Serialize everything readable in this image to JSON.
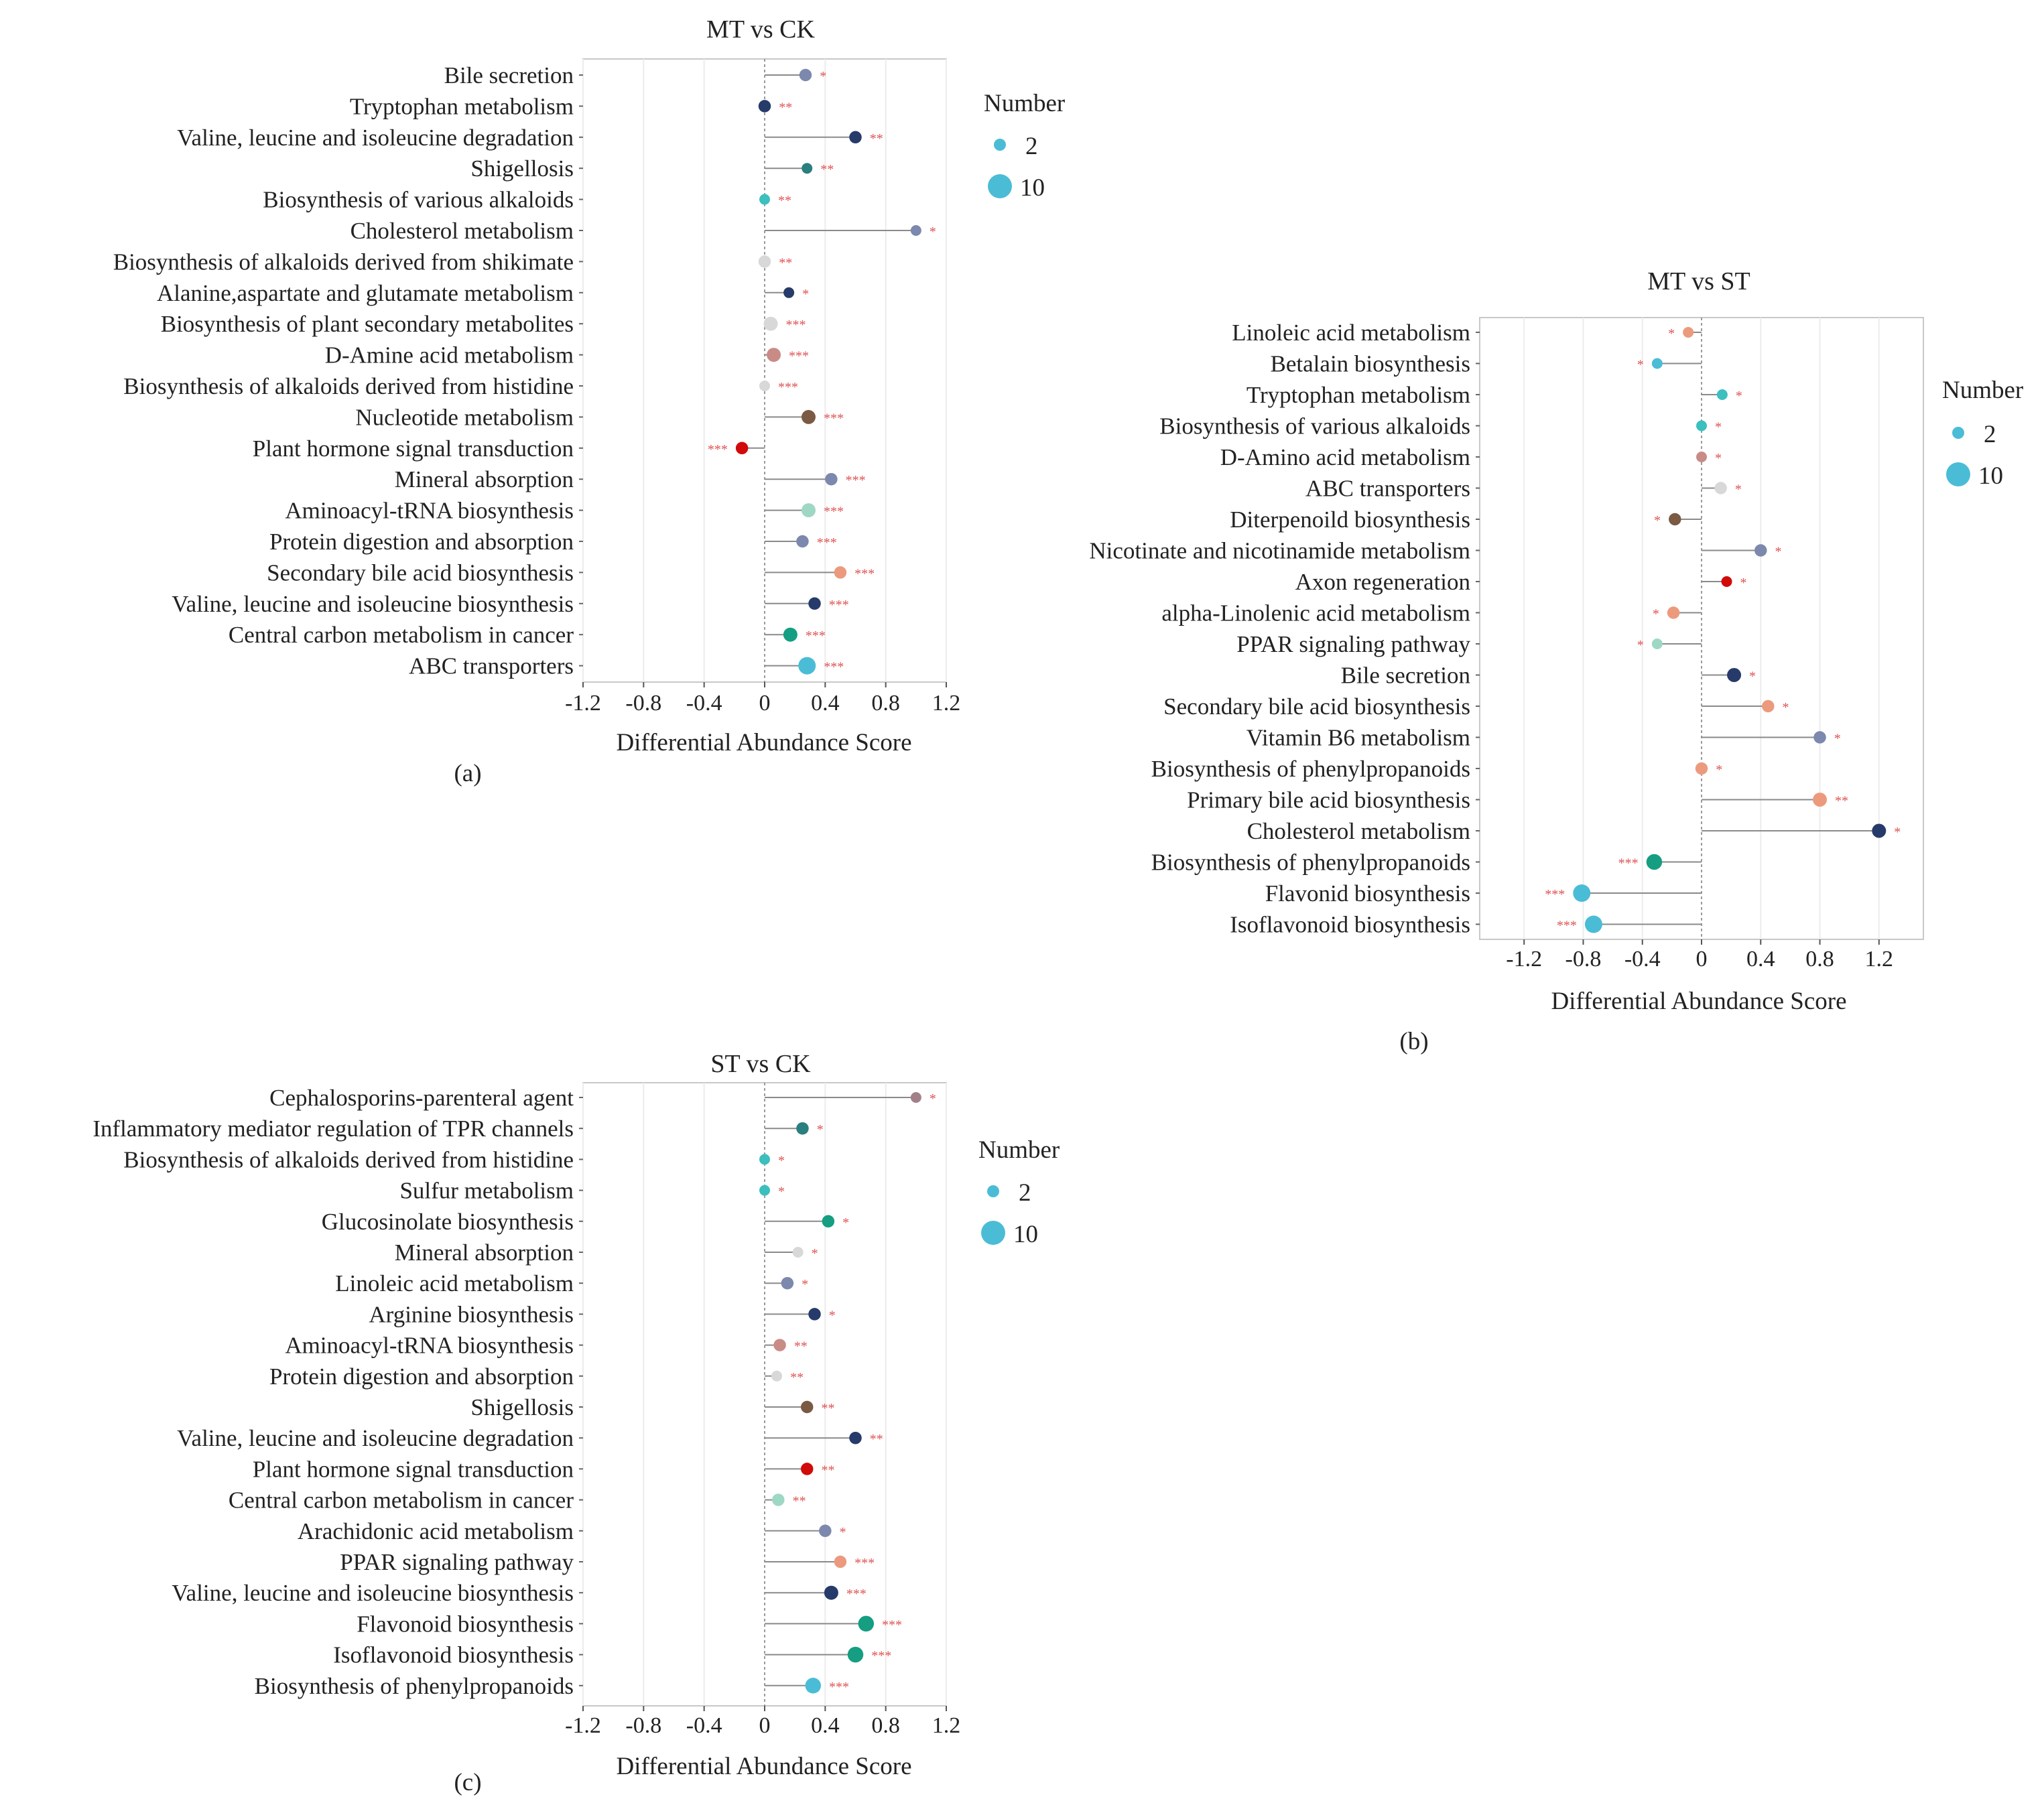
{
  "legend": {
    "title": "Number",
    "small_label": "2",
    "large_label": "10",
    "small_value": 2,
    "large_value": 10,
    "color": "#4bbcd6"
  },
  "chart_data": [
    {
      "panel_label": "(a)",
      "type": "lollipop",
      "title": "MT vs CK",
      "xlabel": "Differential Abundance Score",
      "xlim": [
        -1.2,
        1.2
      ],
      "ticks": [
        "-1.2",
        "-0.8",
        "-0.4",
        "0",
        "0.4",
        "0.8",
        "1.2"
      ],
      "tick_values": [
        -1.2,
        -0.8,
        -0.4,
        0,
        0.4,
        0.8,
        1.2
      ],
      "pathways": [
        {
          "name": "Bile secretion",
          "score": 0.27,
          "count": 3,
          "color": "#7c88ad",
          "sig": "*"
        },
        {
          "name": "Tryptophan metabolism",
          "score": 0.0,
          "count": 3,
          "color": "#263b6a",
          "sig": "**"
        },
        {
          "name": "Valine, leucine and isoleucine degradation",
          "score": 0.6,
          "count": 3,
          "color": "#263b6a",
          "sig": "**"
        },
        {
          "name": "Shigellosis",
          "score": 0.28,
          "count": 2,
          "color": "#2a7f7f",
          "sig": "**"
        },
        {
          "name": "Biosynthesis of various alkaloids",
          "score": 0.0,
          "count": 2,
          "color": "#3bbfbf",
          "sig": "**"
        },
        {
          "name": "Cholesterol metabolism",
          "score": 1.0,
          "count": 2,
          "color": "#7c88ad",
          "sig": "*"
        },
        {
          "name": "Biosynthesis of alkaloids derived from shikimate",
          "score": 0.0,
          "count": 3,
          "color": "#d8d8d8",
          "sig": "**"
        },
        {
          "name": "Alanine,aspartate and glutamate metabolism",
          "score": 0.16,
          "count": 2,
          "color": "#263b6a",
          "sig": "*"
        },
        {
          "name": "Biosynthesis of plant secondary metabolites",
          "score": 0.04,
          "count": 4,
          "color": "#d8d8d8",
          "sig": "***"
        },
        {
          "name": "D-Amine acid metabolism",
          "score": 0.06,
          "count": 4,
          "color": "#c98b86",
          "sig": "***"
        },
        {
          "name": "Biosynthesis of alkaloids derived from histidine",
          "score": 0.0,
          "count": 2,
          "color": "#d8d8d8",
          "sig": "***"
        },
        {
          "name": "Nucleotide metabolism",
          "score": 0.29,
          "count": 4,
          "color": "#7a5a43",
          "sig": "***"
        },
        {
          "name": "Plant hormone signal transduction",
          "score": -0.15,
          "count": 3,
          "color": "#d10a0a",
          "sig": "***"
        },
        {
          "name": "Mineral absorption",
          "score": 0.44,
          "count": 3,
          "color": "#7c88ad",
          "sig": "***"
        },
        {
          "name": "Aminoacyl-tRNA biosynthesis",
          "score": 0.29,
          "count": 4,
          "color": "#9ed8c4",
          "sig": "***"
        },
        {
          "name": "Protein digestion and absorption",
          "score": 0.25,
          "count": 3,
          "color": "#7c88ad",
          "sig": "***"
        },
        {
          "name": "Secondary bile acid biosynthesis",
          "score": 0.5,
          "count": 3,
          "color": "#ec9a7d",
          "sig": "***"
        },
        {
          "name": "Valine, leucine and isoleucine biosynthesis",
          "score": 0.33,
          "count": 3,
          "color": "#263b6a",
          "sig": "***"
        },
        {
          "name": "Central carbon metabolism in cancer",
          "score": 0.17,
          "count": 4,
          "color": "#159e81",
          "sig": "***"
        },
        {
          "name": "ABC transporters",
          "score": 0.28,
          "count": 6,
          "color": "#4bbcd6",
          "sig": "***"
        }
      ]
    },
    {
      "panel_label": "(b)",
      "type": "lollipop",
      "title": "MT vs ST",
      "xlabel": "Differential Abundance Score",
      "xlim": [
        -1.5,
        1.5
      ],
      "ticks": [
        "-1.2",
        "-0.8",
        "-0.4",
        "0",
        "0.4",
        "0.8",
        "1.2"
      ],
      "tick_values": [
        -1.2,
        -0.8,
        -0.4,
        0,
        0.4,
        0.8,
        1.2
      ],
      "pathways": [
        {
          "name": "Linoleic acid metabolism",
          "score": -0.09,
          "count": 2,
          "color": "#ec9a7d",
          "sig": "*"
        },
        {
          "name": "Betalain biosynthesis",
          "score": -0.3,
          "count": 2,
          "color": "#4bbcd6",
          "sig": "*"
        },
        {
          "name": "Tryptophan metabolism",
          "score": 0.14,
          "count": 2,
          "color": "#3bbfbf",
          "sig": "*"
        },
        {
          "name": "Biosynthesis of various alkaloids",
          "score": 0.0,
          "count": 2,
          "color": "#3bbfbf",
          "sig": "*"
        },
        {
          "name": "D-Amino acid metabolism",
          "score": 0.0,
          "count": 2,
          "color": "#c98b86",
          "sig": "*"
        },
        {
          "name": "ABC transporters",
          "score": 0.13,
          "count": 3,
          "color": "#d8d8d8",
          "sig": "*"
        },
        {
          "name": "Diterpenoild biosynthesis",
          "score": -0.18,
          "count": 3,
          "color": "#7a5a43",
          "sig": "*"
        },
        {
          "name": "Nicotinate and nicotinamide metabolism",
          "score": 0.4,
          "count": 3,
          "color": "#7c88ad",
          "sig": "*"
        },
        {
          "name": "Axon regeneration",
          "score": 0.17,
          "count": 2,
          "color": "#d10a0a",
          "sig": "*"
        },
        {
          "name": "alpha-Linolenic acid metabolism",
          "score": -0.19,
          "count": 3,
          "color": "#ec9a7d",
          "sig": "*"
        },
        {
          "name": "PPAR signaling pathway",
          "score": -0.3,
          "count": 2,
          "color": "#9ed8c4",
          "sig": "*"
        },
        {
          "name": "Bile secretion",
          "score": 0.22,
          "count": 4,
          "color": "#263b6a",
          "sig": "*"
        },
        {
          "name": "Secondary bile acid biosynthesis",
          "score": 0.45,
          "count": 3,
          "color": "#ec9a7d",
          "sig": "*"
        },
        {
          "name": "Vitamin B6 metabolism",
          "score": 0.8,
          "count": 3,
          "color": "#7c88ad",
          "sig": "*"
        },
        {
          "name": "Biosynthesis of phenylpropanoids",
          "score": 0.0,
          "count": 3,
          "color": "#ec9a7d",
          "sig": "*"
        },
        {
          "name": "Primary bile acid biosynthesis",
          "score": 0.8,
          "count": 4,
          "color": "#ec9a7d",
          "sig": "**"
        },
        {
          "name": "Cholesterol metabolism",
          "score": 1.2,
          "count": 4,
          "color": "#263b6a",
          "sig": "*"
        },
        {
          "name": "Biosynthesis of phenylpropanoids",
          "score": -0.32,
          "count": 5,
          "color": "#159e81",
          "sig": "***"
        },
        {
          "name": "Flavonid biosynthesis",
          "score": -0.81,
          "count": 6,
          "color": "#4bbcd6",
          "sig": "***"
        },
        {
          "name": "Isoflavonoid biosynthesis",
          "score": -0.73,
          "count": 6,
          "color": "#4bbcd6",
          "sig": "***"
        }
      ]
    },
    {
      "panel_label": "(c)",
      "type": "lollipop",
      "title": "ST vs CK",
      "xlabel": "Differential Abundance Score",
      "xlim": [
        -1.2,
        1.2
      ],
      "ticks": [
        "-1.2",
        "-0.8",
        "-0.4",
        "0",
        "0.4",
        "0.8",
        "1.2"
      ],
      "tick_values": [
        -1.2,
        -0.8,
        -0.4,
        0,
        0.4,
        0.8,
        1.2
      ],
      "pathways": [
        {
          "name": "Cephalosporins-parenteral agent",
          "score": 1.0,
          "count": 2,
          "color": "#a37f87",
          "sig": "*"
        },
        {
          "name": "Inflammatory mediator regulation of TPR channels",
          "score": 0.25,
          "count": 3,
          "color": "#2a7f7f",
          "sig": "*"
        },
        {
          "name": "Biosynthesis of alkaloids derived from histidine",
          "score": 0.0,
          "count": 2,
          "color": "#3bbfbf",
          "sig": "*"
        },
        {
          "name": "Sulfur metabolism",
          "score": 0.0,
          "count": 2,
          "color": "#3bbfbf",
          "sig": "*"
        },
        {
          "name": "Glucosinolate biosynthesis",
          "score": 0.42,
          "count": 3,
          "color": "#159e81",
          "sig": "*"
        },
        {
          "name": "Mineral absorption",
          "score": 0.22,
          "count": 2,
          "color": "#d8d8d8",
          "sig": "*"
        },
        {
          "name": "Linoleic acid metabolism",
          "score": 0.15,
          "count": 3,
          "color": "#7c88ad",
          "sig": "*"
        },
        {
          "name": "Arginine biosynthesis",
          "score": 0.33,
          "count": 3,
          "color": "#263b6a",
          "sig": "*"
        },
        {
          "name": "Aminoacyl-tRNA biosynthesis",
          "score": 0.1,
          "count": 3,
          "color": "#c98b86",
          "sig": "**"
        },
        {
          "name": "Protein digestion and absorption",
          "score": 0.08,
          "count": 2,
          "color": "#d8d8d8",
          "sig": "**"
        },
        {
          "name": "Shigellosis",
          "score": 0.28,
          "count": 3,
          "color": "#7a5a43",
          "sig": "**"
        },
        {
          "name": "Valine, leucine and isoleucine degradation",
          "score": 0.6,
          "count": 3,
          "color": "#263b6a",
          "sig": "**"
        },
        {
          "name": "Plant hormone signal transduction",
          "score": 0.28,
          "count": 3,
          "color": "#d10a0a",
          "sig": "**"
        },
        {
          "name": "Central carbon metabolism in cancer",
          "score": 0.09,
          "count": 3,
          "color": "#9ed8c4",
          "sig": "**"
        },
        {
          "name": "Arachidonic acid metabolism",
          "score": 0.4,
          "count": 3,
          "color": "#7c88ad",
          "sig": "*"
        },
        {
          "name": "PPAR signaling pathway",
          "score": 0.5,
          "count": 3,
          "color": "#ec9a7d",
          "sig": "***"
        },
        {
          "name": "Valine, leucine and isoleucine biosynthesis",
          "score": 0.44,
          "count": 4,
          "color": "#263b6a",
          "sig": "***"
        },
        {
          "name": "Flavonoid biosynthesis",
          "score": 0.67,
          "count": 5,
          "color": "#159e81",
          "sig": "***"
        },
        {
          "name": "Isoflavonoid biosynthesis",
          "score": 0.6,
          "count": 5,
          "color": "#159e81",
          "sig": "***"
        },
        {
          "name": "Biosynthesis of phenylpropanoids",
          "score": 0.32,
          "count": 5,
          "color": "#4bbcd6",
          "sig": "***"
        }
      ]
    }
  ]
}
